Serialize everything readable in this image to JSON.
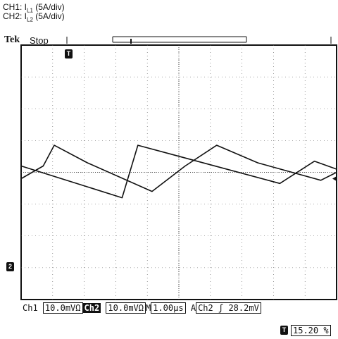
{
  "legend": {
    "ch1_prefix": "CH1: I",
    "ch1_sub": "L1",
    "ch1_scale": " (5A/div)",
    "ch2_prefix": "CH2: I",
    "ch2_sub": "L2",
    "ch2_scale": " (5A/div)"
  },
  "header": {
    "brand": "Tek",
    "state": "Stop"
  },
  "markers": {
    "trigger_top": "T",
    "ch2_ground": "2",
    "trigger_pos_icon": "T"
  },
  "status_bar": {
    "ch1_label": "Ch1",
    "ch1_value": "10.0mVΩ",
    "ch2_label": "Ch2",
    "ch2_value": "10.0mVΩ",
    "timebase_label": "M",
    "timebase_value": "1.00µs",
    "acq_label": "A",
    "trigger_source": "Ch2",
    "trigger_slope": "ʃ",
    "trigger_level": "28.2mV"
  },
  "trigger_position": "15.20 %",
  "chart_data": {
    "type": "line",
    "grid": true,
    "x_div": 10,
    "y_div": 8,
    "series": [
      {
        "points": [
          [
            0,
            0.2
          ],
          [
            3.2,
            -0.8
          ],
          [
            3.7,
            0.85
          ],
          [
            8.2,
            -0.35
          ],
          [
            9.3,
            0.35
          ],
          [
            10,
            0.1
          ]
        ]
      },
      {
        "points": [
          [
            0,
            -0.2
          ],
          [
            0.7,
            0.2
          ],
          [
            1.05,
            0.85
          ],
          [
            2.1,
            0.3
          ],
          [
            4.15,
            -0.6
          ],
          [
            5.2,
            0.2
          ],
          [
            6.2,
            0.85
          ],
          [
            7.5,
            0.3
          ],
          [
            9.5,
            -0.25
          ],
          [
            10,
            0.0
          ]
        ]
      }
    ]
  }
}
